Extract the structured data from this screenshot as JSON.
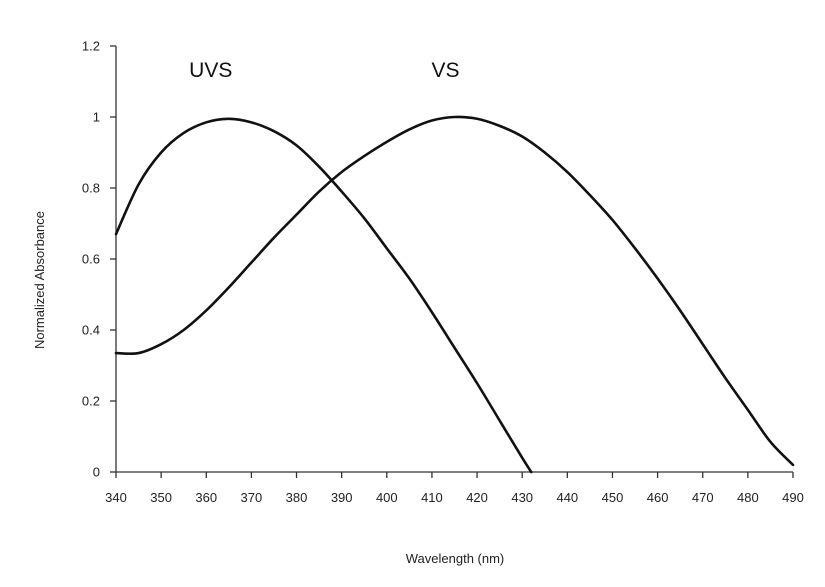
{
  "chart_data": {
    "type": "line",
    "title": "",
    "xlabel": "Wavelength (nm)",
    "ylabel": "Normalized Absorbance",
    "xlim": [
      340,
      490
    ],
    "ylim": [
      0,
      1.2
    ],
    "x_ticks": [
      "340",
      "350",
      "360",
      "370",
      "380",
      "390",
      "400",
      "410",
      "420",
      "430",
      "440",
      "450",
      "460",
      "470",
      "480",
      "490"
    ],
    "y_ticks": [
      "0",
      "0.2",
      "0.4",
      "0.6",
      "0.8",
      "1",
      "1.2"
    ],
    "grid": false,
    "series": [
      {
        "name": "UVS",
        "color": "#111111",
        "points": [
          [
            340,
            0.67
          ],
          [
            345,
            0.81
          ],
          [
            350,
            0.9
          ],
          [
            355,
            0.955
          ],
          [
            360,
            0.985
          ],
          [
            365,
            0.995
          ],
          [
            370,
            0.985
          ],
          [
            375,
            0.96
          ],
          [
            380,
            0.92
          ],
          [
            385,
            0.86
          ],
          [
            390,
            0.79
          ],
          [
            395,
            0.715
          ],
          [
            400,
            0.63
          ],
          [
            405,
            0.545
          ],
          [
            410,
            0.45
          ],
          [
            415,
            0.35
          ],
          [
            420,
            0.25
          ],
          [
            425,
            0.145
          ],
          [
            430,
            0.04
          ],
          [
            432,
            0.0
          ]
        ]
      },
      {
        "name": "VS",
        "color": "#111111",
        "points": [
          [
            340,
            0.335
          ],
          [
            345,
            0.335
          ],
          [
            350,
            0.36
          ],
          [
            355,
            0.4
          ],
          [
            360,
            0.455
          ],
          [
            365,
            0.52
          ],
          [
            370,
            0.59
          ],
          [
            375,
            0.66
          ],
          [
            380,
            0.725
          ],
          [
            385,
            0.79
          ],
          [
            390,
            0.845
          ],
          [
            395,
            0.89
          ],
          [
            400,
            0.93
          ],
          [
            405,
            0.965
          ],
          [
            410,
            0.99
          ],
          [
            415,
            1.0
          ],
          [
            420,
            0.995
          ],
          [
            425,
            0.975
          ],
          [
            430,
            0.945
          ],
          [
            435,
            0.9
          ],
          [
            440,
            0.845
          ],
          [
            445,
            0.78
          ],
          [
            450,
            0.71
          ],
          [
            455,
            0.63
          ],
          [
            460,
            0.545
          ],
          [
            465,
            0.455
          ],
          [
            470,
            0.36
          ],
          [
            475,
            0.265
          ],
          [
            480,
            0.175
          ],
          [
            485,
            0.085
          ],
          [
            490,
            0.02
          ]
        ]
      }
    ],
    "annotations": [
      {
        "text": "UVS",
        "x": 361,
        "y": 1.135
      },
      {
        "text": "VS",
        "x": 413,
        "y": 1.135
      }
    ]
  }
}
